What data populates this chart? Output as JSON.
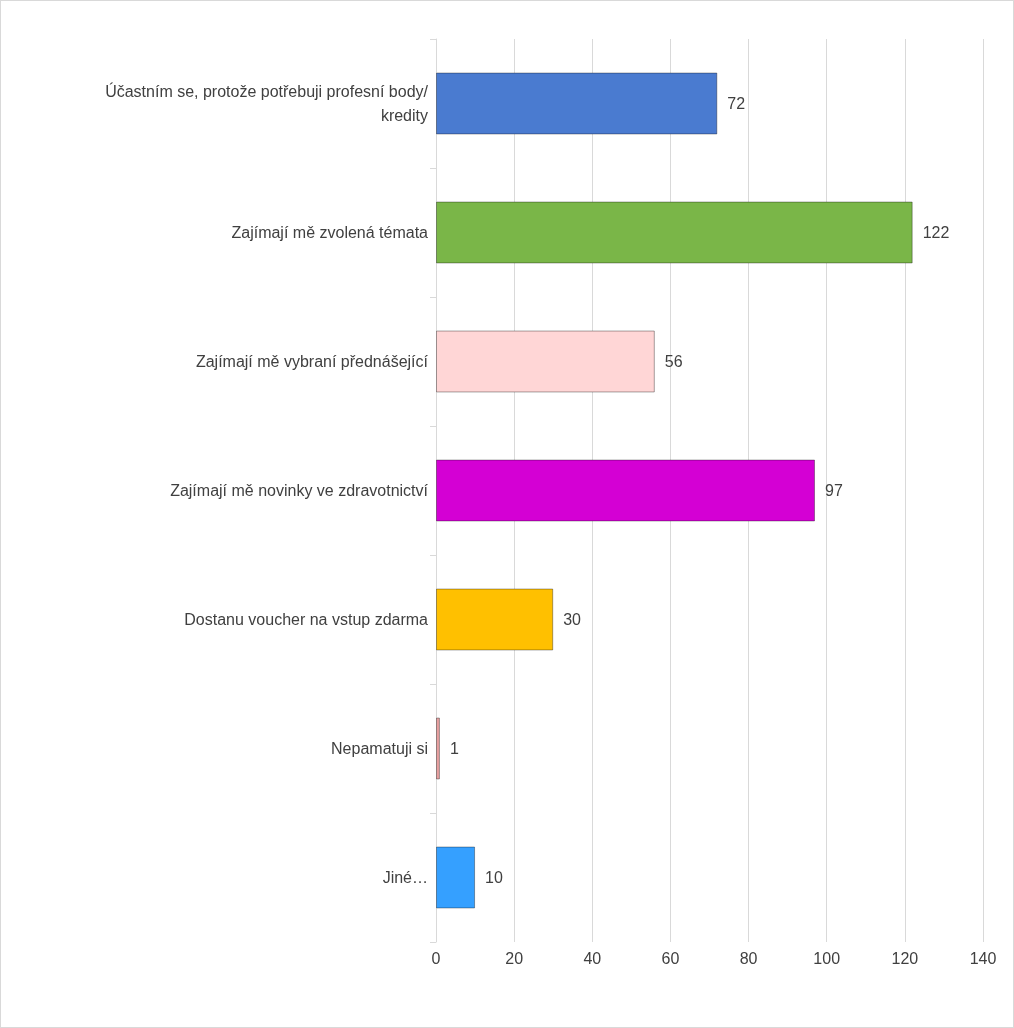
{
  "chart_data": {
    "type": "bar",
    "orientation": "horizontal",
    "categories": [
      "Účastním se, protože potřebuji profesní body/kredity",
      "Zajímají mě zvolená témata",
      "Zajímají mě vybraní přednášející",
      "Zajímají mě novinky ve zdravotnictví",
      "Dostanu voucher na vstup zdarma",
      "Nepamatuji si",
      "Jiné…"
    ],
    "values": [
      72,
      122,
      56,
      97,
      30,
      1,
      10
    ],
    "colors": [
      "#4a7bd0",
      "#7ab648",
      "#ffd6d6",
      "#d400d4",
      "#ffc000",
      "#e8a0a0",
      "#35a0ff"
    ],
    "xlim": [
      0,
      140
    ],
    "xticks": [
      0,
      20,
      40,
      60,
      80,
      100,
      120,
      140
    ],
    "grid": "x",
    "data_labels": true
  }
}
